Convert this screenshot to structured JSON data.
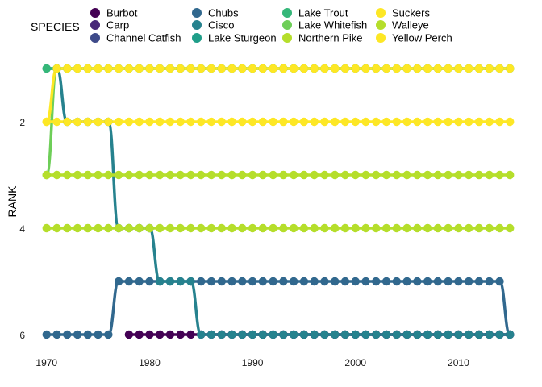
{
  "chart_data": {
    "type": "line",
    "title": "",
    "xlabel": "",
    "ylabel": "RANK",
    "xlim": [
      1969,
      2016
    ],
    "ylim": [
      1,
      6
    ],
    "y_reversed": true,
    "x_ticks": [
      1970,
      1980,
      1990,
      2000,
      2010
    ],
    "y_ticks": [
      2,
      4,
      6
    ],
    "grid": false,
    "legend": {
      "title": "SPECIES",
      "placement": "top",
      "columns": 4
    },
    "x": [
      1970,
      1971,
      1972,
      1973,
      1974,
      1975,
      1976,
      1977,
      1978,
      1979,
      1980,
      1981,
      1982,
      1983,
      1984,
      1985,
      1986,
      1987,
      1988,
      1989,
      1990,
      1991,
      1992,
      1993,
      1994,
      1995,
      1996,
      1997,
      1998,
      1999,
      2000,
      2001,
      2002,
      2003,
      2004,
      2005,
      2006,
      2007,
      2008,
      2009,
      2010,
      2011,
      2012,
      2013,
      2014,
      2015
    ],
    "series": [
      {
        "name": "Burbot",
        "color": "#440154",
        "values": [
          null,
          null,
          null,
          null,
          null,
          null,
          null,
          null,
          6,
          6,
          6,
          6,
          6,
          6,
          6,
          6,
          6,
          6,
          6,
          6,
          6,
          6,
          6,
          6,
          6,
          6,
          6,
          6,
          6,
          6,
          6,
          6,
          6,
          6,
          6,
          6,
          6,
          6,
          6,
          6,
          6,
          6,
          6,
          6,
          6,
          6
        ]
      },
      {
        "name": "Carp",
        "color": "#482878",
        "values": [
          null,
          null,
          null,
          null,
          null,
          null,
          null,
          null,
          null,
          null,
          null,
          null,
          null,
          null,
          null,
          null,
          6,
          6,
          6,
          6,
          6,
          6,
          6,
          6,
          6,
          6,
          6,
          6,
          6,
          6,
          6,
          6,
          6,
          6,
          6,
          6,
          6,
          6,
          6,
          6,
          6,
          6,
          6,
          6,
          6,
          6
        ]
      },
      {
        "name": "Channel Catfish",
        "color": "#3E4A89",
        "values": [
          null,
          null,
          null,
          null,
          null,
          null,
          null,
          null,
          null,
          null,
          null,
          null,
          null,
          null,
          null,
          null,
          null,
          null,
          null,
          null,
          null,
          null,
          null,
          null,
          null,
          null,
          null,
          null,
          null,
          null,
          null,
          null,
          null,
          null,
          null,
          null,
          null,
          null,
          null,
          null,
          null,
          null,
          null,
          null,
          null,
          null
        ]
      },
      {
        "name": "Chubs",
        "color": "#31688E",
        "values": [
          6,
          6,
          6,
          6,
          6,
          6,
          6,
          5,
          5,
          5,
          5,
          5,
          5,
          5,
          5,
          5,
          5,
          5,
          5,
          5,
          5,
          5,
          5,
          5,
          5,
          5,
          5,
          5,
          5,
          5,
          5,
          5,
          5,
          5,
          5,
          5,
          5,
          5,
          5,
          5,
          5,
          5,
          5,
          5,
          5,
          6
        ]
      },
      {
        "name": "Cisco",
        "color": "#26828E",
        "values": [
          1,
          1,
          2,
          2,
          2,
          2,
          2,
          4,
          4,
          4,
          4,
          5,
          5,
          5,
          5,
          6,
          6,
          6,
          6,
          6,
          6,
          6,
          6,
          6,
          6,
          6,
          6,
          6,
          6,
          6,
          6,
          6,
          6,
          6,
          6,
          6,
          6,
          6,
          6,
          6,
          6,
          6,
          6,
          6,
          6,
          6
        ]
      },
      {
        "name": "Lake Sturgeon",
        "color": "#1F9E89",
        "values": [
          null,
          null,
          null,
          null,
          null,
          null,
          null,
          null,
          null,
          null,
          null,
          null,
          null,
          null,
          null,
          null,
          null,
          null,
          null,
          null,
          null,
          null,
          null,
          null,
          null,
          null,
          null,
          null,
          null,
          null,
          null,
          null,
          null,
          null,
          null,
          null,
          null,
          null,
          null,
          null,
          null,
          null,
          null,
          null,
          null,
          null
        ]
      },
      {
        "name": "Lake Trout",
        "color": "#35B779",
        "values": [
          1,
          1,
          1,
          1,
          1,
          1,
          1,
          1,
          1,
          1,
          1,
          1,
          1,
          1,
          1,
          1,
          1,
          1,
          1,
          1,
          1,
          1,
          1,
          1,
          1,
          1,
          1,
          1,
          1,
          1,
          1,
          1,
          1,
          1,
          1,
          1,
          1,
          1,
          1,
          1,
          1,
          1,
          1,
          1,
          1,
          1
        ]
      },
      {
        "name": "Lake Whitefish",
        "color": "#6ECE58",
        "values": [
          3,
          1,
          1,
          1,
          1,
          1,
          1,
          1,
          1,
          1,
          1,
          1,
          1,
          1,
          1,
          1,
          1,
          1,
          1,
          1,
          1,
          1,
          1,
          1,
          1,
          1,
          1,
          1,
          1,
          1,
          1,
          1,
          1,
          1,
          1,
          1,
          1,
          1,
          1,
          1,
          1,
          1,
          1,
          1,
          1,
          1
        ]
      },
      {
        "name": "Northern Pike",
        "color": "#B5DE2B",
        "values": [
          4,
          4,
          4,
          4,
          4,
          4,
          4,
          4,
          4,
          4,
          4,
          4,
          4,
          4,
          4,
          4,
          4,
          4,
          4,
          4,
          4,
          4,
          4,
          4,
          4,
          4,
          4,
          4,
          4,
          4,
          4,
          4,
          4,
          4,
          4,
          4,
          4,
          4,
          4,
          4,
          4,
          4,
          4,
          4,
          4,
          4
        ]
      },
      {
        "name": "Suckers",
        "color": "#FDE725",
        "values": [
          2,
          2,
          2,
          2,
          2,
          2,
          2,
          2,
          2,
          2,
          2,
          2,
          2,
          2,
          2,
          2,
          2,
          2,
          2,
          2,
          2,
          2,
          2,
          2,
          2,
          2,
          2,
          2,
          2,
          2,
          2,
          2,
          2,
          2,
          2,
          2,
          2,
          2,
          2,
          2,
          2,
          2,
          2,
          2,
          2,
          2
        ]
      },
      {
        "name": "Walleye",
        "color": "#B5DE2B",
        "values": [
          3,
          3,
          3,
          3,
          3,
          3,
          3,
          3,
          3,
          3,
          3,
          3,
          3,
          3,
          3,
          3,
          3,
          3,
          3,
          3,
          3,
          3,
          3,
          3,
          3,
          3,
          3,
          3,
          3,
          3,
          3,
          3,
          3,
          3,
          3,
          3,
          3,
          3,
          3,
          3,
          3,
          3,
          3,
          3,
          3,
          3
        ]
      },
      {
        "name": "Yellow Perch",
        "color": "#FDE725",
        "values": [
          2,
          1,
          1,
          1,
          1,
          1,
          1,
          1,
          1,
          1,
          1,
          1,
          1,
          1,
          1,
          1,
          1,
          1,
          1,
          1,
          1,
          1,
          1,
          1,
          1,
          1,
          1,
          1,
          1,
          1,
          1,
          1,
          1,
          1,
          1,
          1,
          1,
          1,
          1,
          1,
          1,
          1,
          1,
          1,
          1,
          1
        ]
      }
    ]
  }
}
